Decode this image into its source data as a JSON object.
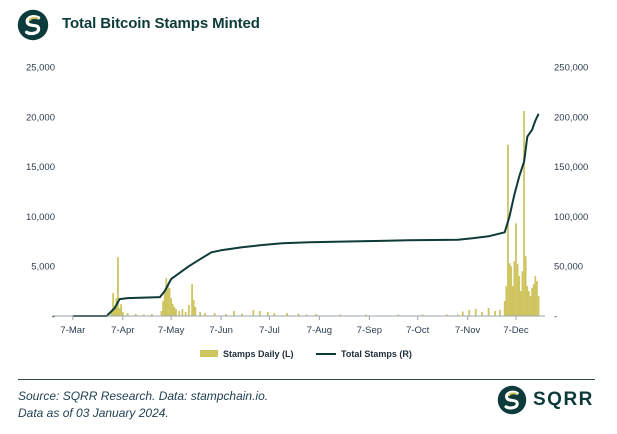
{
  "header": {
    "title": "Total Bitcoin Stamps Minted"
  },
  "colors": {
    "daily": "#cfc560",
    "total": "#0f3a3a",
    "brand": "#0d3b3b"
  },
  "icons": {
    "header_logo": "sqrr-logo-icon",
    "footer_logo": "sqrr-logo-icon"
  },
  "footer": {
    "source_line1": "Source: SQRR Research. Data: stampchain.io.",
    "source_line2": "Data as of 03 January 2024.",
    "brand": "SQRR"
  },
  "chart_data": {
    "type": "bar+line",
    "title": "Total Bitcoin Stamps Minted",
    "x_ticks": [
      "7-Mar",
      "7-Apr",
      "7-May",
      "7-Jun",
      "7-Jul",
      "7-Aug",
      "7-Sep",
      "7-Oct",
      "7-Nov",
      "7-Dec"
    ],
    "y_left": {
      "ticks": [
        "-",
        "5,000",
        "10,000",
        "15,000",
        "20,000",
        "25,000"
      ],
      "lim": [
        0,
        25000
      ]
    },
    "y_right": {
      "ticks": [
        "-",
        "50,000",
        "100,000",
        "150,000",
        "200,000",
        "250,000"
      ],
      "lim": [
        0,
        250000
      ]
    },
    "legend": {
      "position": "bottom",
      "items": [
        "Stamps Daily (L)",
        "Total Stamps (R)"
      ]
    },
    "series": [
      {
        "name": "Stamps Daily (L)",
        "axis": "left",
        "type": "bar",
        "points": [
          [
            "2023-03-31",
            600
          ],
          [
            "2023-04-01",
            2300
          ],
          [
            "2023-04-02",
            1000
          ],
          [
            "2023-04-03",
            1800
          ],
          [
            "2023-04-04",
            5900
          ],
          [
            "2023-04-05",
            800
          ],
          [
            "2023-04-06",
            1200
          ],
          [
            "2023-04-07",
            400
          ],
          [
            "2023-04-10",
            300
          ],
          [
            "2023-04-15",
            200
          ],
          [
            "2023-04-20",
            150
          ],
          [
            "2023-04-25",
            200
          ],
          [
            "2023-05-01",
            500
          ],
          [
            "2023-05-02",
            1500
          ],
          [
            "2023-05-03",
            2500
          ],
          [
            "2023-05-04",
            3800
          ],
          [
            "2023-05-05",
            3000
          ],
          [
            "2023-05-06",
            2800
          ],
          [
            "2023-05-07",
            1800
          ],
          [
            "2023-05-08",
            1200
          ],
          [
            "2023-05-09",
            900
          ],
          [
            "2023-05-10",
            700
          ],
          [
            "2023-05-12",
            500
          ],
          [
            "2023-05-14",
            700
          ],
          [
            "2023-05-16",
            400
          ],
          [
            "2023-05-18",
            1100
          ],
          [
            "2023-05-20",
            3200
          ],
          [
            "2023-05-21",
            1600
          ],
          [
            "2023-05-22",
            900
          ],
          [
            "2023-05-25",
            400
          ],
          [
            "2023-05-28",
            300
          ],
          [
            "2023-06-03",
            300
          ],
          [
            "2023-06-10",
            200
          ],
          [
            "2023-06-15",
            500
          ],
          [
            "2023-06-20",
            250
          ],
          [
            "2023-06-27",
            600
          ],
          [
            "2023-07-01",
            500
          ],
          [
            "2023-07-06",
            400
          ],
          [
            "2023-07-10",
            300
          ],
          [
            "2023-07-18",
            300
          ],
          [
            "2023-07-25",
            250
          ],
          [
            "2023-07-30",
            150
          ],
          [
            "2023-08-05",
            200
          ],
          [
            "2023-08-20",
            150
          ],
          [
            "2023-09-05",
            150
          ],
          [
            "2023-09-25",
            150
          ],
          [
            "2023-10-10",
            150
          ],
          [
            "2023-10-25",
            150
          ],
          [
            "2023-11-01",
            150
          ],
          [
            "2023-11-04",
            450
          ],
          [
            "2023-11-08",
            600
          ],
          [
            "2023-11-12",
            700
          ],
          [
            "2023-11-16",
            400
          ],
          [
            "2023-11-20",
            800
          ],
          [
            "2023-11-24",
            500
          ],
          [
            "2023-11-27",
            600
          ],
          [
            "2023-11-30",
            1500
          ],
          [
            "2023-12-01",
            3000
          ],
          [
            "2023-12-02",
            17200
          ],
          [
            "2023-12-03",
            5300
          ],
          [
            "2023-12-04",
            5000
          ],
          [
            "2023-12-05",
            3000
          ],
          [
            "2023-12-06",
            5500
          ],
          [
            "2023-12-07",
            9300
          ],
          [
            "2023-12-08",
            5200
          ],
          [
            "2023-12-09",
            4000
          ],
          [
            "2023-12-10",
            2500
          ],
          [
            "2023-12-11",
            4500
          ],
          [
            "2023-12-12",
            20600
          ],
          [
            "2023-12-13",
            6000
          ],
          [
            "2023-12-14",
            3000
          ],
          [
            "2023-12-15",
            2500
          ],
          [
            "2023-12-16",
            2000
          ],
          [
            "2023-12-17",
            2800
          ],
          [
            "2023-12-18",
            3200
          ],
          [
            "2023-12-19",
            4000
          ],
          [
            "2023-12-20",
            3500
          ],
          [
            "2023-12-21",
            2000
          ]
        ]
      },
      {
        "name": "Total Stamps (R)",
        "axis": "right",
        "type": "line",
        "points": [
          [
            "2023-03-07",
            0
          ],
          [
            "2023-03-28",
            0
          ],
          [
            "2023-04-02",
            8000
          ],
          [
            "2023-04-05",
            17000
          ],
          [
            "2023-04-10",
            18000
          ],
          [
            "2023-04-20",
            18500
          ],
          [
            "2023-04-30",
            19000
          ],
          [
            "2023-05-03",
            25000
          ],
          [
            "2023-05-07",
            37000
          ],
          [
            "2023-05-12",
            43000
          ],
          [
            "2023-05-18",
            50000
          ],
          [
            "2023-05-25",
            57000
          ],
          [
            "2023-06-01",
            64000
          ],
          [
            "2023-06-07",
            66000
          ],
          [
            "2023-06-20",
            69000
          ],
          [
            "2023-07-01",
            71000
          ],
          [
            "2023-07-15",
            73000
          ],
          [
            "2023-08-01",
            74000
          ],
          [
            "2023-09-01",
            75000
          ],
          [
            "2023-10-01",
            76000
          ],
          [
            "2023-11-01",
            76500
          ],
          [
            "2023-11-10",
            78000
          ],
          [
            "2023-11-20",
            80000
          ],
          [
            "2023-11-30",
            84000
          ],
          [
            "2023-12-03",
            100000
          ],
          [
            "2023-12-06",
            122000
          ],
          [
            "2023-12-09",
            140000
          ],
          [
            "2023-12-12",
            155000
          ],
          [
            "2023-12-14",
            180000
          ],
          [
            "2023-12-17",
            187000
          ],
          [
            "2023-12-19",
            196000
          ],
          [
            "2023-12-21",
            203000
          ]
        ]
      }
    ]
  }
}
